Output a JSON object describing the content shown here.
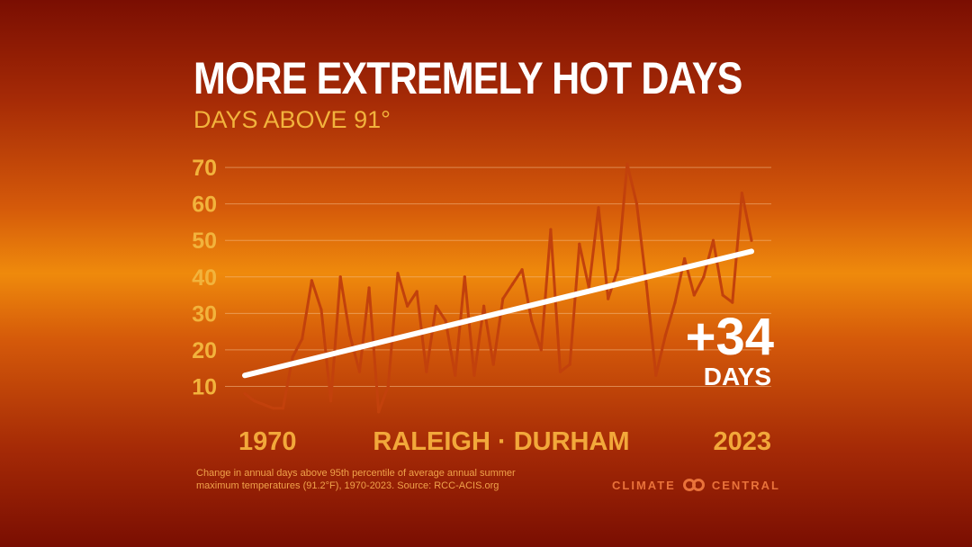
{
  "header": {
    "title": "MORE EXTREMELY HOT DAYS",
    "subtitle": "DAYS ABOVE 91°"
  },
  "footer": {
    "note": "Change in annual days above 95th percentile of average annual summer maximum temperatures (91.2°F), 1970-2023. Source: RCC-ACIS.org",
    "logo_left": "CLIMATE",
    "logo_right": "CENTRAL"
  },
  "colors": {
    "background_center": "#ef8a0c",
    "background_edge": "#7a0e02",
    "line": "#c2410c",
    "trend": "#ffffff",
    "accent": "#f2b33c"
  },
  "chart_data": {
    "type": "line",
    "title": "MORE EXTREMELY HOT DAYS",
    "subtitle": "DAYS ABOVE 91°",
    "location": "RALEIGH · DURHAM",
    "x_start_label": "1970",
    "x_end_label": "2023",
    "x": [
      1970,
      1971,
      1972,
      1973,
      1974,
      1975,
      1976,
      1977,
      1978,
      1979,
      1980,
      1981,
      1982,
      1983,
      1984,
      1985,
      1986,
      1987,
      1988,
      1989,
      1990,
      1991,
      1992,
      1993,
      1994,
      1995,
      1996,
      1997,
      1998,
      1999,
      2000,
      2001,
      2002,
      2003,
      2004,
      2005,
      2006,
      2007,
      2008,
      2009,
      2010,
      2011,
      2012,
      2013,
      2014,
      2015,
      2016,
      2017,
      2018,
      2019,
      2020,
      2021,
      2022,
      2023
    ],
    "series": [
      {
        "values": [
          8,
          6,
          5,
          4,
          4,
          18,
          23,
          39,
          31,
          6,
          40,
          24,
          14,
          37,
          3,
          10,
          41,
          32,
          36,
          14,
          32,
          28,
          13,
          40,
          13,
          32,
          16,
          34,
          38,
          42,
          28,
          20,
          53,
          14,
          16,
          49,
          37,
          59,
          34,
          42,
          71,
          60,
          38,
          13,
          24,
          33,
          45,
          35,
          40,
          50,
          35,
          33,
          63,
          50
        ]
      }
    ],
    "trend": {
      "start": 13,
      "end": 47
    },
    "annotation": {
      "value": "+34",
      "unit": "DAYS"
    },
    "yticks": [
      10,
      20,
      30,
      40,
      50,
      60,
      70
    ],
    "ylim": [
      0,
      72
    ],
    "grid": true
  }
}
